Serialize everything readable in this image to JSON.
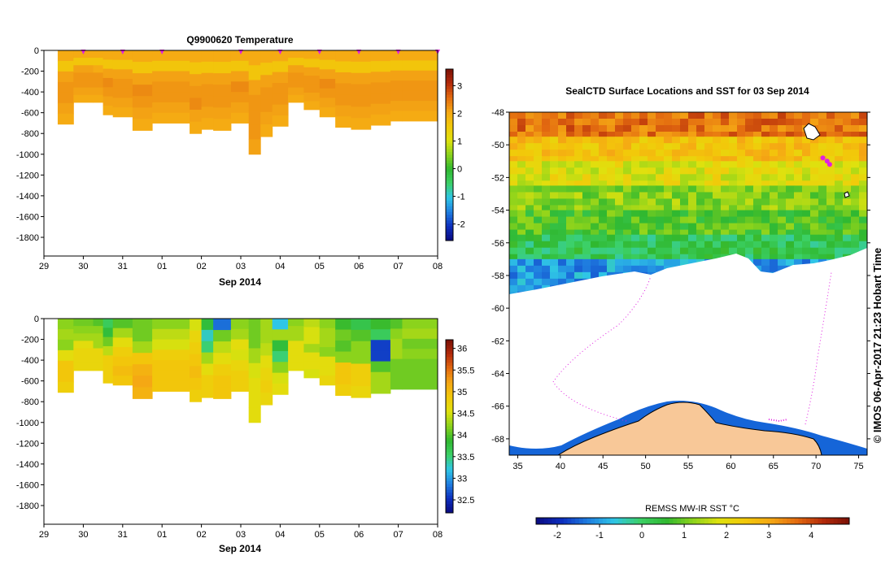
{
  "colors": {
    "jet": [
      "#0a0a80",
      "#0d2fbf",
      "#1f7fe0",
      "#2fc6e6",
      "#3cd066",
      "#30b830",
      "#8bd31c",
      "#dfe10e",
      "#f2c90a",
      "#f5a814",
      "#e36a10",
      "#b32a0a",
      "#7a1006"
    ],
    "sampled_marker": "#e020e0",
    "land": "#f8c898",
    "no_data": "#ffffff"
  },
  "left_panels": {
    "top": {
      "title": "Q9900620  Temperature",
      "xlabel": "Sep 2014",
      "x_ticks": [
        "29",
        "30",
        "31",
        "01",
        "02",
        "03",
        "04",
        "05",
        "06",
        "07",
        "08"
      ],
      "y_ticks": [
        "0",
        "-200",
        "-400",
        "-600",
        "-800",
        "-1000",
        "-1200",
        "-1400",
        "-1600",
        "-1800"
      ],
      "colorbar_ticks": [
        "3",
        "2",
        "1",
        "0",
        "-1",
        "-2"
      ]
    },
    "bottom": {
      "title": "",
      "xlabel": "Sep 2014",
      "x_ticks": [
        "29",
        "30",
        "31",
        "01",
        "02",
        "03",
        "04",
        "05",
        "06",
        "07",
        "08"
      ],
      "y_ticks": [
        "0",
        "-200",
        "-400",
        "-600",
        "-800",
        "-1000",
        "-1200",
        "-1400",
        "-1600",
        "-1800"
      ],
      "colorbar_ticks": [
        "36",
        "35.5",
        "35",
        "34.5",
        "34",
        "33.5",
        "33",
        "32.5"
      ]
    }
  },
  "map": {
    "title": "SealCTD Surface Locations and SST for 03 Sep 2014",
    "lat_ticks": [
      "-48",
      "-50",
      "-52",
      "-54",
      "-56",
      "-58",
      "-60",
      "-62",
      "-64",
      "-66",
      "-68"
    ],
    "lon_ticks": [
      "35",
      "40",
      "45",
      "50",
      "55",
      "60",
      "65",
      "70",
      "75"
    ],
    "side_label": "© IMOS 06-Apr-2017 21:23 Hobart Time",
    "colorbar_label": "REMSS MW-IR SST °C",
    "colorbar_ticks": [
      "-2",
      "-1",
      "0",
      "1",
      "2",
      "3",
      "4"
    ]
  },
  "chart_data": [
    {
      "type": "heatmap",
      "title": "Q9900620  Temperature",
      "xlabel": "Sep 2014",
      "ylabel": "",
      "x_range_days": [
        29.0,
        39.0
      ],
      "ylim": [
        -1980,
        0
      ],
      "color_range": [
        -2.6,
        3.6
      ],
      "profile_days": [
        29.35,
        29.75,
        30.25,
        30.5,
        30.75,
        31.25,
        31.75,
        32.7,
        33.0,
        33.3,
        33.75,
        34.2,
        34.5,
        34.8,
        35.2,
        35.6,
        36.0,
        36.4,
        36.8,
        37.3,
        37.8,
        38.1
      ],
      "profile_max_depth": [
        -710,
        -500,
        -500,
        -620,
        -640,
        -770,
        -700,
        -800,
        -760,
        -770,
        -700,
        -1000,
        -830,
        -730,
        -500,
        -570,
        -640,
        -740,
        -760,
        -720,
        -680,
        -680
      ],
      "profile_values": [
        [
          2.0,
          1.6,
          2.1,
          2.2,
          2.2,
          2.1,
          2.0
        ],
        [
          2.0,
          1.6,
          2.1,
          2.2,
          2.2,
          2.1,
          2.0
        ],
        [
          2.0,
          1.6,
          2.0,
          2.2,
          2.2,
          2.1,
          2.0
        ],
        [
          2.0,
          1.6,
          2.1,
          2.3,
          2.2,
          2.1,
          2.0
        ],
        [
          2.0,
          1.6,
          2.1,
          2.2,
          2.2,
          2.1,
          2.0
        ],
        [
          2.0,
          1.6,
          2.1,
          2.3,
          2.2,
          2.1,
          2.0
        ],
        [
          2.0,
          1.6,
          2.1,
          2.2,
          2.2,
          2.1,
          2.0
        ],
        [
          2.0,
          1.6,
          2.1,
          2.2,
          2.3,
          2.1,
          2.0
        ],
        [
          2.0,
          1.6,
          2.1,
          2.2,
          2.2,
          2.1,
          2.0
        ],
        [
          2.0,
          1.6,
          2.1,
          2.2,
          2.2,
          2.1,
          2.0
        ],
        [
          2.0,
          1.6,
          2.1,
          2.3,
          2.2,
          2.1,
          2.0
        ],
        [
          2.0,
          1.6,
          2.1,
          2.2,
          2.2,
          2.2,
          2.1
        ],
        [
          2.0,
          1.6,
          2.1,
          2.2,
          2.2,
          2.1,
          2.0
        ],
        [
          2.0,
          1.6,
          2.1,
          2.2,
          2.2,
          2.1,
          2.0
        ],
        [
          2.0,
          1.6,
          2.1,
          2.2,
          2.2,
          2.1,
          2.0
        ],
        [
          2.0,
          1.6,
          2.1,
          2.2,
          2.2,
          2.1,
          2.0
        ],
        [
          2.0,
          1.6,
          2.1,
          2.3,
          2.2,
          2.1,
          2.0
        ],
        [
          2.0,
          1.6,
          2.1,
          2.2,
          2.2,
          2.1,
          2.0
        ],
        [
          2.0,
          1.6,
          2.1,
          2.2,
          2.2,
          2.1,
          2.0
        ],
        [
          2.0,
          1.6,
          2.1,
          2.2,
          2.2,
          2.1,
          2.0
        ],
        [
          2.0,
          1.6,
          2.1,
          2.2,
          2.2,
          2.1,
          2.0
        ],
        [
          2.0,
          1.6,
          2.1,
          2.2,
          2.2,
          2.1,
          2.0
        ]
      ],
      "surface_markers_days": [
        30.0,
        31.0,
        32.0,
        34.0,
        35.0,
        36.0,
        37.0,
        38.0,
        39.0
      ]
    },
    {
      "type": "heatmap",
      "title": "",
      "xlabel": "Sep 2014",
      "ylabel": "",
      "x_range_days": [
        29.0,
        39.0
      ],
      "ylim": [
        -1980,
        0
      ],
      "color_range": [
        32.2,
        36.2
      ],
      "profile_days": [
        29.35,
        29.75,
        30.25,
        30.5,
        30.75,
        31.25,
        31.75,
        32.7,
        33.0,
        33.3,
        33.75,
        34.2,
        34.5,
        34.8,
        35.2,
        35.6,
        36.0,
        36.4,
        36.8,
        37.3,
        37.8,
        38.1
      ],
      "profile_max_depth": [
        -710,
        -500,
        -500,
        -620,
        -640,
        -770,
        -700,
        -800,
        -760,
        -770,
        -700,
        -1000,
        -830,
        -730,
        -500,
        -570,
        -640,
        -740,
        -760,
        -720,
        -680,
        -680
      ],
      "profile_values": [
        [
          34.2,
          34.3,
          34.2,
          34.6,
          34.9,
          34.9,
          34.8
        ],
        [
          34.1,
          34.2,
          34.3,
          34.6,
          34.7,
          34.7,
          34.7
        ],
        [
          34.0,
          34.2,
          34.3,
          34.3,
          34.7,
          34.7,
          34.7
        ],
        [
          33.6,
          33.8,
          34.1,
          34.4,
          34.8,
          34.8,
          34.8
        ],
        [
          34.0,
          34.3,
          34.6,
          34.8,
          34.9,
          35.0,
          34.9
        ],
        [
          34.1,
          34.1,
          34.3,
          34.9,
          35.1,
          35.2,
          35.1
        ],
        [
          34.2,
          34.4,
          34.5,
          34.8,
          34.9,
          34.9,
          34.9
        ],
        [
          34.5,
          34.7,
          34.8,
          34.9,
          35.0,
          34.9,
          34.8
        ],
        [
          33.8,
          33.3,
          33.5,
          34.3,
          34.6,
          34.8,
          34.8
        ],
        [
          32.8,
          34.1,
          34.4,
          34.6,
          34.8,
          34.9,
          34.9
        ],
        [
          34.2,
          34.3,
          34.6,
          34.5,
          34.7,
          34.8,
          34.8
        ],
        [
          34.1,
          34.1,
          34.3,
          34.5,
          34.6,
          34.6,
          34.6
        ],
        [
          34.3,
          34.3,
          34.4,
          34.6,
          34.7,
          34.8,
          34.7
        ],
        [
          33.2,
          34.3,
          33.8,
          33.5,
          34.2,
          34.5,
          34.6
        ],
        [
          34.2,
          34.3,
          34.3,
          34.6,
          34.6,
          34.6,
          34.6
        ],
        [
          34.4,
          34.5,
          34.5,
          34.3,
          34.6,
          34.6,
          34.5
        ],
        [
          34.2,
          34.3,
          34.3,
          34.2,
          34.6,
          34.6,
          34.7
        ],
        [
          33.9,
          34.1,
          34.0,
          34.2,
          34.9,
          34.9,
          34.8
        ],
        [
          33.7,
          34.0,
          34.2,
          34.2,
          34.8,
          34.8,
          34.7
        ],
        [
          33.9,
          33.6,
          32.6,
          32.6,
          34.0,
          34.3,
          34.3
        ],
        [
          34.0,
          34.2,
          34.3,
          34.3,
          34.1,
          34.1,
          34.1
        ],
        [
          34.2,
          34.3,
          34.1,
          34.2,
          34.1,
          34.1,
          34.1
        ]
      ]
    },
    {
      "type": "heatmap",
      "title": "SealCTD Surface Locations and SST for 03 Sep 2014",
      "xlabel": "",
      "ylabel": "",
      "xlim": [
        34,
        76
      ],
      "ylim": [
        -69,
        -48
      ],
      "color_range": [
        -2.5,
        4.9
      ],
      "colorbar_label": "REMSS MW-IR SST °C",
      "sst_bands": [
        {
          "lat_top": -48,
          "lat_bottom": -49.5,
          "value": 3.6
        },
        {
          "lat_top": -49.5,
          "lat_bottom": -51,
          "value": 2.6
        },
        {
          "lat_top": -51,
          "lat_bottom": -52.5,
          "value": 1.9
        },
        {
          "lat_top": -52.5,
          "lat_bottom": -54,
          "value": 1.2
        },
        {
          "lat_top": -54,
          "lat_bottom": -55.5,
          "value": 0.8
        },
        {
          "lat_top": -55.5,
          "lat_bottom": -57,
          "value": 0.2
        },
        {
          "lat_top": -57,
          "lat_bottom": -59.2,
          "value": -1.0
        }
      ],
      "seal_locations": [
        {
          "lon": 70.8,
          "lat": -50.8
        },
        {
          "lon": 71.3,
          "lat": -51.0
        },
        {
          "lon": 71.6,
          "lat": -51.2
        }
      ],
      "land_label": ""
    }
  ]
}
